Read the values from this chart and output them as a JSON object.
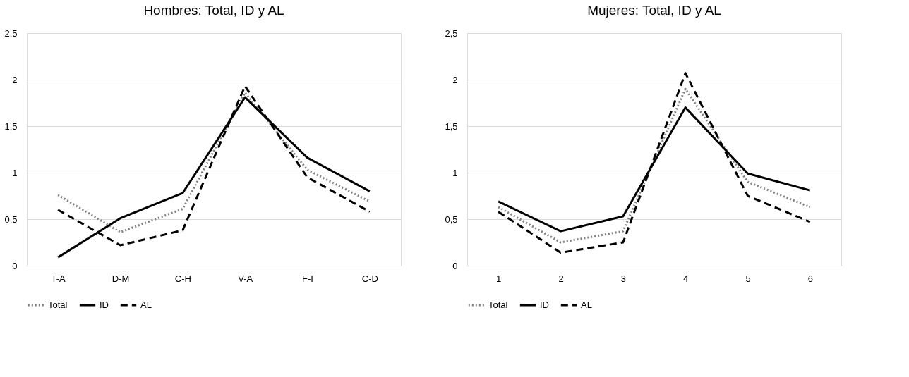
{
  "chart_data": [
    {
      "type": "line",
      "title": "Hombres: Total, ID y AL",
      "categories": [
        "T-A",
        "D-M",
        "C-H",
        "V-A",
        "F-I",
        "C-D"
      ],
      "series": [
        {
          "name": "Total",
          "color": "#7f7f7f",
          "line_style": "dotted",
          "values": [
            0.76,
            0.36,
            0.61,
            1.86,
            1.03,
            0.69
          ]
        },
        {
          "name": "ID",
          "color": "#000000",
          "line_style": "solid",
          "values": [
            0.09,
            0.51,
            0.78,
            1.81,
            1.16,
            0.8
          ]
        },
        {
          "name": "AL",
          "color": "#000000",
          "line_style": "dashed",
          "values": [
            0.6,
            0.22,
            0.38,
            1.93,
            0.95,
            0.58
          ]
        }
      ],
      "ylim": [
        0,
        2.5
      ],
      "yticks": [
        0,
        {
          "value": 0.5,
          "label": "0,5"
        },
        1,
        {
          "value": 1.5,
          "label": "1,5"
        },
        2,
        {
          "value": 2.5,
          "label": "2,5"
        }
      ],
      "grid": "y",
      "legend": "bottom",
      "marker": "none"
    },
    {
      "type": "line",
      "title": "Mujeres: Total, ID y AL",
      "categories": [
        "1",
        "2",
        "3",
        "4",
        "5",
        "6"
      ],
      "series": [
        {
          "name": "Total",
          "color": "#7f7f7f",
          "line_style": "dotted",
          "values": [
            0.63,
            0.25,
            0.37,
            1.9,
            0.9,
            0.63
          ]
        },
        {
          "name": "ID",
          "color": "#000000",
          "line_style": "solid",
          "values": [
            0.69,
            0.37,
            0.53,
            1.7,
            0.99,
            0.81
          ]
        },
        {
          "name": "AL",
          "color": "#000000",
          "line_style": "dashed",
          "values": [
            0.58,
            0.14,
            0.25,
            2.07,
            0.75,
            0.47
          ]
        }
      ],
      "ylim": [
        0,
        2.5
      ],
      "yticks": [
        0,
        {
          "value": 0.5,
          "label": "0,5"
        },
        1,
        {
          "value": 1.5,
          "label": "1,5"
        },
        2,
        {
          "value": 2.5,
          "label": "2,5"
        }
      ],
      "grid": "y",
      "legend": "bottom",
      "marker": "none"
    }
  ]
}
